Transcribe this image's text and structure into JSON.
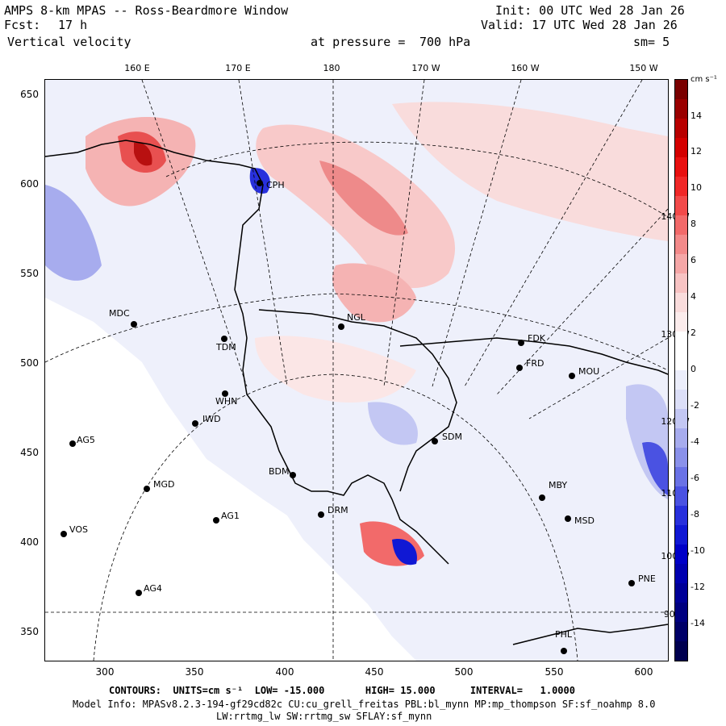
{
  "header": {
    "title": "AMPS 8-km MPAS -- Ross-Beardmore Window",
    "fcst_label": "Fcst:",
    "fcst_value": "17 h",
    "field": "Vertical velocity",
    "init": "Init: 00 UTC Wed 28 Jan 26",
    "valid": "Valid: 17 UTC Wed 28 Jan 26",
    "level_label": "at pressure =",
    "level_value": "700 hPa",
    "smooth": "sm= 5"
  },
  "axes": {
    "y_ticks": [
      "650",
      "600",
      "550",
      "500",
      "450",
      "400",
      "350"
    ],
    "x_ticks": [
      "300",
      "350",
      "400",
      "450",
      "500",
      "550",
      "600"
    ],
    "lon_top": [
      "160 E",
      "170 E",
      "180",
      "170 W",
      "160 W",
      "150 W"
    ],
    "lon_right": [
      "140 W",
      "130 W",
      "120 W",
      "110 W",
      "100 W",
      "90 W"
    ]
  },
  "colorbar": {
    "units": "cm s⁻¹",
    "labels": [
      "14",
      "12",
      "10",
      "8",
      "6",
      "4",
      "2",
      "0",
      "-2",
      "-4",
      "-6",
      "-8",
      "-10",
      "-12",
      "-14"
    ],
    "colors": [
      "#7a0000",
      "#9a0000",
      "#b80000",
      "#d40000",
      "#e81010",
      "#f02828",
      "#f24a4a",
      "#f26a6a",
      "#f38a8a",
      "#f5a7a7",
      "#f7c3c3",
      "#f9dcdc",
      "#fbecec",
      "#ffffff",
      "#ffffff",
      "#eceefb",
      "#dcdff8",
      "#c3c7f3",
      "#a7acee",
      "#8a91ea",
      "#6a72e6",
      "#4a52e2",
      "#2830dc",
      "#1018d4",
      "#0000c8",
      "#0000b0",
      "#000098",
      "#000080",
      "#000068",
      "#000050"
    ]
  },
  "stations": [
    {
      "name": "MDC"
    },
    {
      "name": "TDM"
    },
    {
      "name": "WHN"
    },
    {
      "name": "IWD"
    },
    {
      "name": "AG5"
    },
    {
      "name": "MGD"
    },
    {
      "name": "AG1"
    },
    {
      "name": "VOS"
    },
    {
      "name": "AG4"
    },
    {
      "name": "NGL"
    },
    {
      "name": "FDK"
    },
    {
      "name": "FRD"
    },
    {
      "name": "MOU"
    },
    {
      "name": "SDM"
    },
    {
      "name": "BDM"
    },
    {
      "name": "DRM"
    },
    {
      "name": "MBY"
    },
    {
      "name": "MSD"
    },
    {
      "name": "PNE"
    },
    {
      "name": "PHL"
    },
    {
      "name": "CPH"
    }
  ],
  "footer": {
    "contours": "CONTOURS:  UNITS=cm s⁻¹  LOW= -15.000       HIGH= 15.000      INTERVAL=   1.0000",
    "model1": "Model Info: MPASv8.2.3-194-gf29cd82c CU:cu_grell_freitas PBL:bl_mynn MP:mp_thompson SF:sf_noahmp 8.0",
    "model2": "LW:rrtmg_lw SW:rrtmg_sw SFLAY:sf_mynn"
  }
}
